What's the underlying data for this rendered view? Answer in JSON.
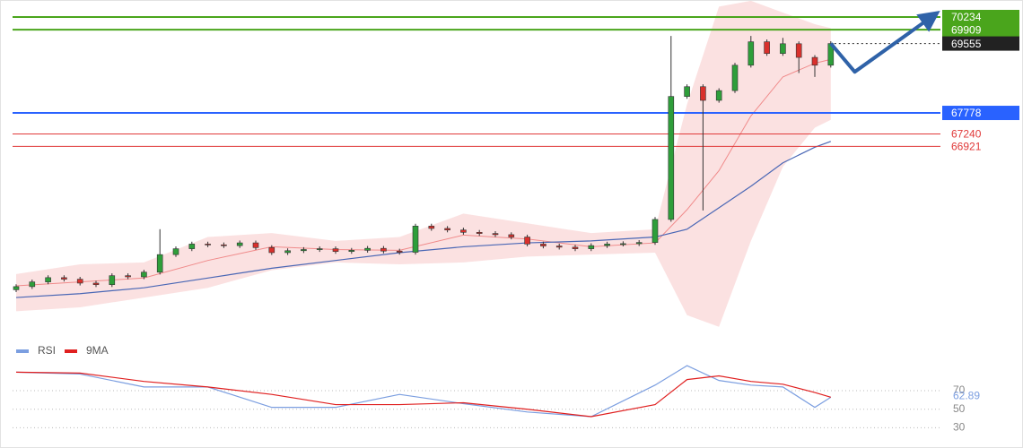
{
  "chart_data": [
    {
      "type": "candlestick",
      "ylim": [
        62180,
        70670
      ],
      "up_color": "#2e9e3a",
      "down_color": "#d9302c",
      "open": [
        63250,
        63330,
        63450,
        63560,
        63520,
        63420,
        63380,
        63610,
        63580,
        63700,
        64150,
        64300,
        64420,
        64400,
        64380,
        64450,
        64330,
        64200,
        64250,
        64280,
        64300,
        64230,
        64260,
        64310,
        64240,
        64210,
        64880,
        64820,
        64780,
        64720,
        64690,
        64660,
        64600,
        64420,
        64370,
        64340,
        64300,
        64380,
        64420,
        64430,
        64460,
        65050,
        68200,
        68450,
        68100,
        68350,
        69000,
        69600,
        69300,
        69550,
        69200,
        69000
      ],
      "high": [
        63390,
        63510,
        63620,
        63620,
        63580,
        63480,
        63670,
        63670,
        63760,
        64800,
        64360,
        64480,
        64480,
        64460,
        64510,
        64510,
        64390,
        64310,
        64340,
        64360,
        64360,
        64320,
        64370,
        64370,
        64300,
        64940,
        64940,
        64880,
        64840,
        64780,
        64750,
        64720,
        64660,
        64480,
        64430,
        64400,
        64440,
        64480,
        64490,
        64520,
        65110,
        69750,
        68510,
        68510,
        68410,
        69060,
        69750,
        69660,
        69700,
        69610,
        69260,
        69615
      ],
      "low": [
        63190,
        63270,
        63390,
        63460,
        63360,
        63320,
        63320,
        63520,
        63520,
        63640,
        64090,
        64240,
        64340,
        64320,
        64320,
        64270,
        64140,
        64140,
        64190,
        64220,
        64170,
        64170,
        64200,
        64180,
        64150,
        64150,
        64760,
        64720,
        64660,
        64630,
        64600,
        64540,
        64360,
        64310,
        64280,
        64240,
        64240,
        64320,
        64360,
        64370,
        64400,
        64990,
        68140,
        65280,
        68040,
        68290,
        68940,
        69240,
        69240,
        68800,
        68700,
        68940
      ],
      "close": [
        63330,
        63450,
        63560,
        63520,
        63420,
        63380,
        63610,
        63580,
        63700,
        64150,
        64300,
        64420,
        64400,
        64380,
        64450,
        64330,
        64200,
        64250,
        64280,
        64300,
        64230,
        64260,
        64310,
        64240,
        64210,
        64880,
        64820,
        64780,
        64720,
        64690,
        64660,
        64600,
        64420,
        64370,
        64340,
        64300,
        64380,
        64420,
        64430,
        64460,
        65050,
        68200,
        68450,
        68100,
        68350,
        69000,
        69600,
        69300,
        69550,
        69200,
        69000,
        69555
      ],
      "overlay_x": [
        0,
        4,
        8,
        12,
        16,
        20,
        24,
        28,
        32,
        36,
        40,
        42,
        44,
        46,
        48,
        50,
        51
      ],
      "band": {
        "color": "#f7c9c9",
        "upper": [
          63650,
          63900,
          63950,
          64600,
          64700,
          64500,
          64600,
          65200,
          64950,
          64700,
          64800,
          68000,
          70500,
          70650,
          70350,
          70050,
          69950
        ],
        "lower": [
          62700,
          62800,
          63050,
          63300,
          63750,
          63950,
          63900,
          63950,
          64100,
          64150,
          64200,
          62600,
          62300,
          64500,
          66400,
          67400,
          67600
        ]
      },
      "ma_fast": {
        "color": "#f08a8a",
        "values": [
          63350,
          63450,
          63550,
          64000,
          64350,
          64280,
          64260,
          64650,
          64550,
          64350,
          64450,
          65300,
          66300,
          67700,
          68700,
          69050,
          69150
        ]
      },
      "ma_slow": {
        "color": "#4a67b5",
        "values": [
          63050,
          63150,
          63300,
          63550,
          63800,
          64000,
          64200,
          64350,
          64450,
          64500,
          64600,
          64800,
          65350,
          65900,
          66500,
          66900,
          67050
        ]
      },
      "forecast": {
        "color": "#2f62a8",
        "x": [
          51,
          52.5,
          57.3
        ],
        "values": [
          69555,
          68830,
          70234
        ]
      },
      "levels": [
        {
          "value": 70234,
          "color": "#4aa51c",
          "style": "solid",
          "boxed": true
        },
        {
          "value": 69909,
          "color": "#4aa51c",
          "style": "solid",
          "boxed": true
        },
        {
          "value": 69555,
          "color": "#222222",
          "style": "dotted",
          "boxed": true
        },
        {
          "value": 67778,
          "color": "#2962ff",
          "style": "solid",
          "boxed": true
        },
        {
          "value": 67240,
          "color": "#e03a3a",
          "style": "thin",
          "boxed": false
        },
        {
          "value": 66921,
          "color": "#e03a3a",
          "style": "thin",
          "boxed": false
        }
      ]
    },
    {
      "type": "line",
      "x": [
        0,
        4,
        8,
        12,
        16,
        20,
        24,
        28,
        32,
        36,
        40,
        42,
        44,
        46,
        48,
        50,
        51
      ],
      "ylim": [
        13,
        100
      ],
      "yticks": [
        30,
        50,
        70
      ],
      "series": [
        {
          "name": "RSI",
          "color": "#7b9ee0",
          "values": [
            90,
            88,
            74,
            74,
            52,
            52,
            66,
            56,
            47,
            42,
            76,
            97,
            81,
            76,
            74,
            52,
            62.89
          ]
        },
        {
          "name": "9MA",
          "color": "#e02020",
          "values": [
            90,
            89,
            80,
            74,
            66,
            55,
            55,
            57,
            50,
            42,
            55,
            82,
            86,
            80,
            77,
            68,
            63
          ]
        }
      ]
    }
  ]
}
